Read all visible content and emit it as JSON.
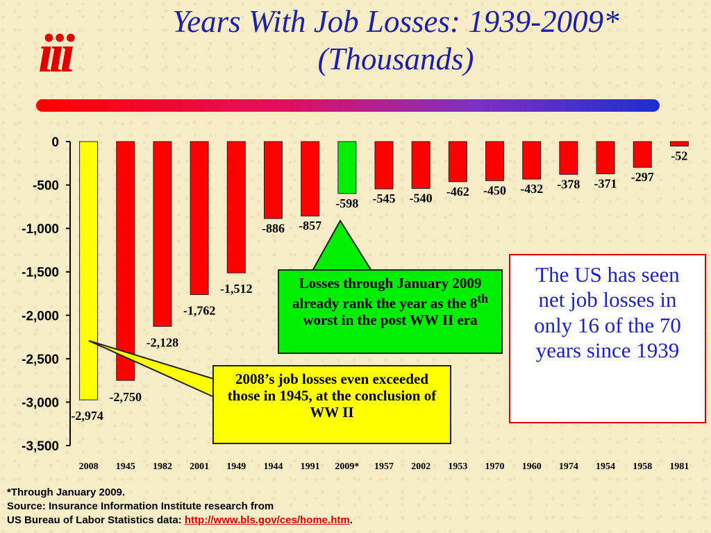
{
  "logo": {
    "text": "iii"
  },
  "title": {
    "line1": "Years With Job Losses: 1939-2009*",
    "line2": "(Thousands)"
  },
  "colors": {
    "default_bar": "#ff0000",
    "highlight_2008": "#ffff00",
    "highlight_2009": "#00ee00",
    "title": "#1c1fa8",
    "box_text": "#1c1fd0"
  },
  "chart_data": {
    "type": "bar",
    "categories": [
      "2008",
      "1945",
      "1982",
      "2001",
      "1949",
      "1944",
      "1991",
      "2009*",
      "1957",
      "2002",
      "1953",
      "1970",
      "1960",
      "1974",
      "1954",
      "1958",
      "1981"
    ],
    "values": [
      -2974,
      -2750,
      -2128,
      -1762,
      -1512,
      -886,
      -857,
      -598,
      -545,
      -540,
      -462,
      -450,
      -432,
      -378,
      -371,
      -297,
      -52
    ],
    "data_labels": [
      "-2,974",
      "-2,750",
      "-2,128",
      "-1,762",
      "-1,512",
      "-886",
      "-857",
      "-598",
      "-545",
      "-540",
      "-462",
      "-450",
      "-432",
      "-378",
      "-371",
      "-297",
      "-52"
    ],
    "bar_colors": [
      "#ffff00",
      "#ff0000",
      "#ff0000",
      "#ff0000",
      "#ff0000",
      "#ff0000",
      "#ff0000",
      "#00ee00",
      "#ff0000",
      "#ff0000",
      "#ff0000",
      "#ff0000",
      "#ff0000",
      "#ff0000",
      "#ff0000",
      "#ff0000",
      "#ff0000"
    ],
    "ylim": [
      -3500,
      0
    ],
    "yticks": [
      0,
      -500,
      -1000,
      -1500,
      -2000,
      -2500,
      -3000,
      -3500
    ],
    "ytick_labels": [
      "0",
      "-500",
      "-1,000",
      "-1,500",
      "-2,000",
      "-2,500",
      "-3,000",
      "-3,500"
    ],
    "grid": false,
    "title": "Years With Job Losses: 1939-2009* (Thousands)"
  },
  "callouts": {
    "green": {
      "text_before": "Losses through January 2009 already rank the year as the 8",
      "sup": "th",
      "text_after": " worst in the post WW II era"
    },
    "yellow": {
      "text": "2008’s job losses even exceeded those in 1945, at the conclusion of WW II"
    },
    "box": {
      "text": "The US has seen net job losses in only 16 of the 70 years since 1939"
    }
  },
  "footnote": {
    "line1": "*Through January 2009.",
    "line2": "Source: Insurance Information Institute research from",
    "line3_prefix": "US Bureau of Labor Statistics data: ",
    "link": "http://www.bls.gov/ces/home.htm",
    "line3_suffix": "."
  }
}
